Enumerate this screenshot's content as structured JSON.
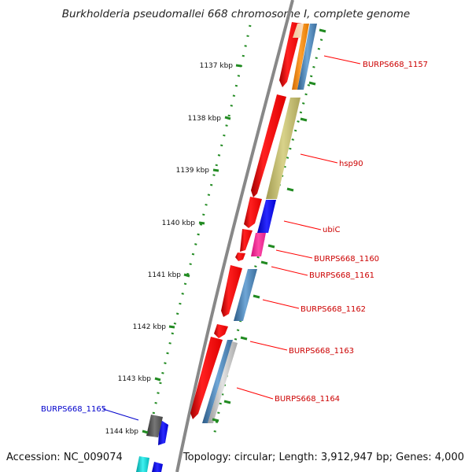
{
  "title": "Burkholderia pseudomallei 668 chromosome I, complete genome",
  "accession_text": "Accession: NC_009074",
  "summary_text": "Topology: circular; Length: 3,912,947 bp; Genes: 4,000",
  "kbp_ticks": [
    "1137 kbp",
    "1138 kbp",
    "1139 kbp",
    "1140 kbp",
    "1141 kbp",
    "1142 kbp",
    "1143 kbp",
    "1144 kbp"
  ],
  "gene_labels": [
    {
      "text": "BURPS668_1157",
      "color": "#cc0000"
    },
    {
      "text": "hsp90",
      "color": "#cc0000"
    },
    {
      "text": "ubiC",
      "color": "#cc0000"
    },
    {
      "text": "BURPS668_1160",
      "color": "#cc0000"
    },
    {
      "text": "BURPS668_1161",
      "color": "#cc0000"
    },
    {
      "text": "BURPS668_1162",
      "color": "#cc0000"
    },
    {
      "text": "BURPS668_1163",
      "color": "#cc0000"
    },
    {
      "text": "BURPS668_1164",
      "color": "#cc0000"
    },
    {
      "text": "BURPS668_1165",
      "color": "#0000cc"
    }
  ],
  "colors": {
    "gene_red": "#ff0000",
    "gene_blue": "#0000ff",
    "orange": "#ff8c00",
    "steelblue": "#4682b4",
    "khaki": "#bdb76b",
    "magenta": "#ff1493",
    "silver": "#c0c0c0",
    "cyan": "#00ced1",
    "darkgrey": "#555555",
    "backbone": "#808080",
    "tick_green": "#228b22"
  }
}
